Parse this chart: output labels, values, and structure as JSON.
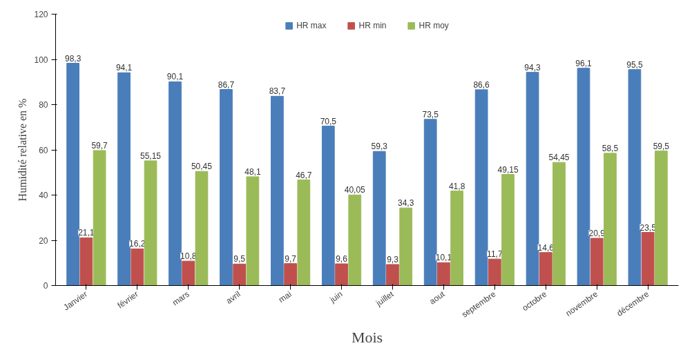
{
  "chart_data": {
    "type": "bar",
    "xlabel": "Mois",
    "ylabel": "Humidité relative en %",
    "categories": [
      "Janvier",
      "février",
      "mars",
      "avril",
      "mai",
      "juin",
      "juillet",
      "aout",
      "septembre",
      "octobre",
      "novembre",
      "décembre"
    ],
    "series": [
      {
        "name": "HR max",
        "color": "#4a7ebb",
        "values": [
          98.3,
          94.1,
          90.1,
          86.7,
          83.7,
          70.5,
          59.3,
          73.5,
          86.6,
          94.3,
          96.1,
          95.5
        ],
        "value_labels": [
          "98,3",
          "94,1",
          "90,1",
          "86,7",
          "83,7",
          "70,5",
          "59,3",
          "73,5",
          "86,6",
          "94,3",
          "96,1",
          "95,5"
        ]
      },
      {
        "name": "HR min",
        "color": "#c0504d",
        "values": [
          21.1,
          16.2,
          10.8,
          9.5,
          9.7,
          9.6,
          9.3,
          10.1,
          11.7,
          14.6,
          20.9,
          23.5
        ],
        "value_labels": [
          "21,1",
          "16,2",
          "10,8",
          "9,5",
          "9,7",
          "9,6",
          "9,3",
          "10,1",
          "11,7",
          "14,6",
          "20,9",
          "23,5"
        ]
      },
      {
        "name": "HR moy",
        "color": "#9bbb59",
        "values": [
          59.7,
          55.15,
          50.45,
          48.1,
          46.7,
          40.05,
          34.3,
          41.8,
          49.15,
          54.45,
          58.5,
          59.5
        ],
        "value_labels": [
          "59,7",
          "55,15",
          "50,45",
          "48,1",
          "46,7",
          "40,05",
          "34,3",
          "41,8",
          "49,15",
          "54,45",
          "58,5",
          "59,5"
        ]
      }
    ],
    "ylim": [
      0,
      120
    ],
    "yticks": [
      0,
      20,
      40,
      60,
      80,
      100,
      120
    ],
    "grid": false,
    "legend": "top"
  }
}
